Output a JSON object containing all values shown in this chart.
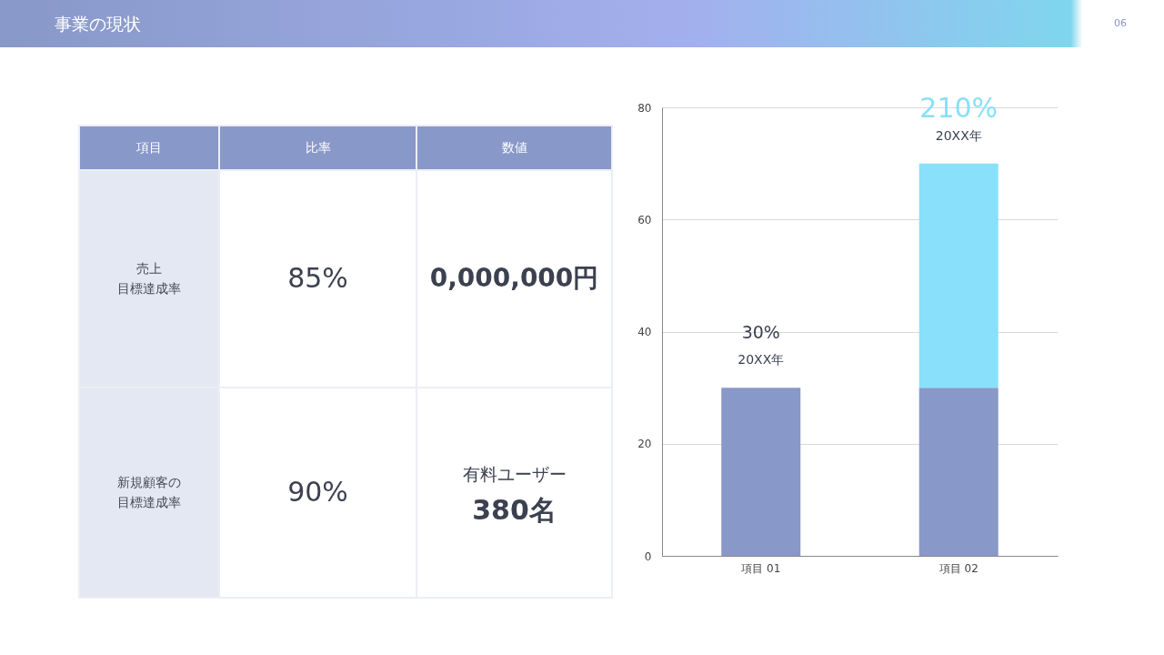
{
  "chart_data": [
    {
      "type": "other",
      "title": "事業の現状",
      "subtitle": "06",
      "annotations": [
        "項目",
        "比率",
        "数値",
        "売上",
        "目標達成率",
        "85%",
        "0,000,000円",
        "新規顧客の",
        "目標達成率",
        "90%",
        "有料ユーザー",
        "380名"
      ]
    },
    {
      "type": "bar",
      "stacked": true,
      "categories": [
        "項目 01",
        "項目 02"
      ],
      "series": [
        {
          "color": "#8898c8",
          "values": [
            30,
            30
          ]
        },
        {
          "color": "#88e0fa",
          "values": [
            null,
            40
          ]
        }
      ],
      "ylim": [
        0,
        80
      ],
      "yticks": [
        0,
        20,
        40,
        60,
        80
      ],
      "grid": "y",
      "annotations": [
        "30%",
        "20XX年",
        "210%",
        "20XX年"
      ]
    }
  ]
}
